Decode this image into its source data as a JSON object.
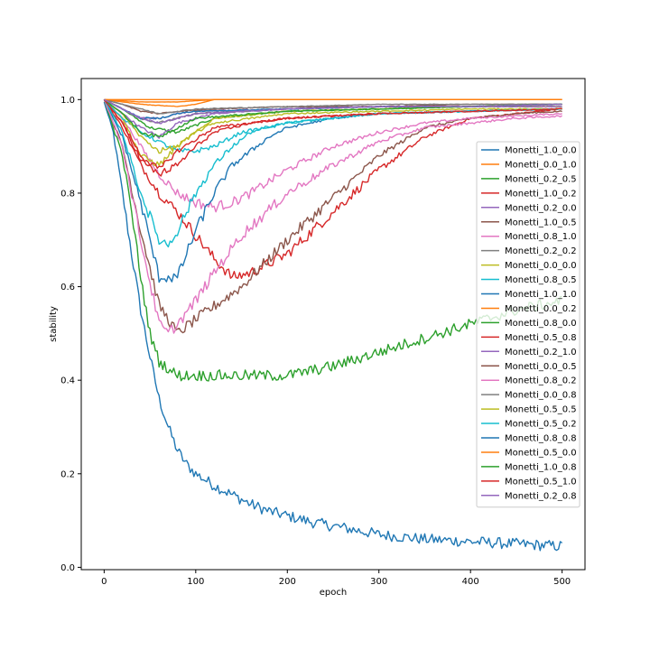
{
  "chart_data": {
    "type": "line",
    "title": "",
    "xlabel": "epoch",
    "ylabel": "stability",
    "xlim": [
      -25,
      525
    ],
    "ylim": [
      -0.005,
      1.045
    ],
    "xticks": [
      0,
      100,
      200,
      300,
      400,
      500
    ],
    "yticks": [
      0.0,
      0.2,
      0.4,
      0.6,
      0.8,
      1.0
    ],
    "xtick_labels": [
      "0",
      "100",
      "200",
      "300",
      "400",
      "500"
    ],
    "ytick_labels": [
      "0.0",
      "0.2",
      "0.4",
      "0.6",
      "0.8",
      "1.0"
    ],
    "grid": false,
    "legend_position": "right",
    "series": [
      {
        "name": "Monetti_1.0_0.0",
        "color": "#1f77b4",
        "x": [
          0,
          10,
          20,
          30,
          40,
          50,
          60,
          70,
          80,
          90,
          100,
          120,
          140,
          160,
          180,
          200,
          230,
          260,
          300,
          350,
          400,
          450,
          500
        ],
        "y": [
          0.995,
          0.93,
          0.8,
          0.67,
          0.55,
          0.45,
          0.36,
          0.3,
          0.25,
          0.22,
          0.2,
          0.175,
          0.155,
          0.135,
          0.12,
          0.11,
          0.095,
          0.085,
          0.07,
          0.06,
          0.055,
          0.05,
          0.045
        ]
      },
      {
        "name": "Monetti_0.0_1.0",
        "color": "#ff7f0e",
        "x": [
          0,
          500
        ],
        "y": [
          1.0,
          1.0
        ]
      },
      {
        "name": "Monetti_0.2_0.5",
        "color": "#2ca02c",
        "x": [
          0,
          20,
          50,
          80,
          120,
          200,
          300,
          400,
          500
        ],
        "y": [
          1.0,
          0.98,
          0.94,
          0.93,
          0.96,
          0.975,
          0.98,
          0.985,
          0.99
        ]
      },
      {
        "name": "Monetti_1.0_0.2",
        "color": "#d62728",
        "x": [
          0,
          20,
          40,
          60,
          80,
          100,
          120,
          140,
          160,
          200,
          250,
          300,
          350,
          400,
          450,
          500
        ],
        "y": [
          1.0,
          0.94,
          0.86,
          0.8,
          0.76,
          0.71,
          0.66,
          0.62,
          0.63,
          0.67,
          0.76,
          0.85,
          0.92,
          0.96,
          0.97,
          0.98
        ]
      },
      {
        "name": "Monetti_0.2_0.0",
        "color": "#9467bd",
        "x": [
          0,
          20,
          40,
          60,
          80,
          120,
          200,
          300,
          400,
          500
        ],
        "y": [
          1.0,
          0.97,
          0.94,
          0.92,
          0.95,
          0.97,
          0.98,
          0.985,
          0.985,
          0.985
        ]
      },
      {
        "name": "Monetti_1.0_0.5",
        "color": "#8c564b",
        "x": [
          0,
          20,
          40,
          60,
          80,
          100,
          150,
          200,
          250,
          300,
          350,
          400,
          450,
          500
        ],
        "y": [
          1.0,
          0.9,
          0.72,
          0.56,
          0.5,
          0.53,
          0.6,
          0.7,
          0.79,
          0.88,
          0.94,
          0.96,
          0.97,
          0.975
        ]
      },
      {
        "name": "Monetti_0.8_1.0",
        "color": "#e377c2",
        "x": [
          0,
          20,
          40,
          60,
          80,
          100,
          120,
          140,
          160,
          200,
          250,
          300,
          350,
          400,
          450,
          500
        ],
        "y": [
          1.0,
          0.96,
          0.9,
          0.84,
          0.8,
          0.78,
          0.77,
          0.78,
          0.8,
          0.85,
          0.9,
          0.93,
          0.95,
          0.96,
          0.965,
          0.97
        ]
      },
      {
        "name": "Monetti_0.2_0.2",
        "color": "#7f7f7f",
        "x": [
          0,
          20,
          40,
          60,
          80,
          100,
          200,
          300,
          400,
          500
        ],
        "y": [
          1.0,
          0.98,
          0.96,
          0.95,
          0.96,
          0.97,
          0.98,
          0.985,
          0.985,
          0.99
        ]
      },
      {
        "name": "Monetti_0.0_0.0",
        "color": "#bcbd22",
        "x": [
          0,
          20,
          40,
          60,
          80,
          100,
          120,
          200,
          300,
          400,
          500
        ],
        "y": [
          1.0,
          0.96,
          0.88,
          0.86,
          0.9,
          0.93,
          0.96,
          0.975,
          0.98,
          0.985,
          0.985
        ]
      },
      {
        "name": "Monetti_0.8_0.5",
        "color": "#17becf",
        "x": [
          0,
          20,
          40,
          60,
          80,
          100,
          120,
          150,
          200,
          300,
          400,
          500
        ],
        "y": [
          1.0,
          0.96,
          0.93,
          0.91,
          0.89,
          0.89,
          0.9,
          0.93,
          0.95,
          0.97,
          0.975,
          0.98
        ]
      },
      {
        "name": "Monetti_1.0_1.0",
        "color": "#1f77b4",
        "x": [
          0,
          20,
          40,
          60,
          80,
          100,
          120,
          140,
          160,
          180,
          200,
          250,
          300,
          400,
          500
        ],
        "y": [
          1.0,
          0.92,
          0.78,
          0.62,
          0.62,
          0.72,
          0.8,
          0.86,
          0.89,
          0.92,
          0.94,
          0.96,
          0.97,
          0.975,
          0.98
        ]
      },
      {
        "name": "Monetti_0.0_0.2",
        "color": "#ff7f0e",
        "x": [
          0,
          40,
          80,
          100,
          120,
          500
        ],
        "y": [
          1.0,
          0.99,
          0.985,
          0.99,
          1.0,
          1.0
        ]
      },
      {
        "name": "Monetti_0.8_0.0",
        "color": "#2ca02c",
        "x": [
          0,
          20,
          30,
          40,
          50,
          60,
          80,
          100,
          150,
          200,
          250,
          300,
          350,
          400,
          450,
          500
        ],
        "y": [
          1.0,
          0.88,
          0.76,
          0.62,
          0.5,
          0.44,
          0.41,
          0.41,
          0.41,
          0.41,
          0.43,
          0.46,
          0.49,
          0.52,
          0.55,
          0.57
        ]
      },
      {
        "name": "Monetti_0.5_0.8",
        "color": "#d62728",
        "x": [
          0,
          20,
          40,
          60,
          80,
          120,
          200,
          300,
          400,
          500
        ],
        "y": [
          1.0,
          0.95,
          0.88,
          0.85,
          0.89,
          0.94,
          0.96,
          0.97,
          0.975,
          0.98
        ]
      },
      {
        "name": "Monetti_0.2_1.0",
        "color": "#9467bd",
        "x": [
          0,
          20,
          40,
          60,
          80,
          100,
          200,
          300,
          400,
          500
        ],
        "y": [
          1.0,
          0.98,
          0.96,
          0.96,
          0.97,
          0.975,
          0.98,
          0.985,
          0.985,
          0.985
        ]
      },
      {
        "name": "Monetti_0.0_0.5",
        "color": "#8c564b",
        "x": [
          0,
          20,
          40,
          60,
          80,
          120,
          200,
          300,
          400,
          500
        ],
        "y": [
          1.0,
          0.99,
          0.975,
          0.97,
          0.975,
          0.98,
          0.985,
          0.985,
          0.99,
          0.99
        ]
      },
      {
        "name": "Monetti_0.8_0.2",
        "color": "#e377c2",
        "x": [
          0,
          20,
          40,
          60,
          70,
          80,
          100,
          120,
          150,
          200,
          250,
          300,
          350,
          400,
          450,
          500
        ],
        "y": [
          1.0,
          0.9,
          0.7,
          0.52,
          0.5,
          0.52,
          0.57,
          0.63,
          0.71,
          0.8,
          0.86,
          0.91,
          0.94,
          0.95,
          0.96,
          0.965
        ]
      },
      {
        "name": "Monetti_0.0_0.8",
        "color": "#7f7f7f",
        "x": [
          0,
          20,
          40,
          60,
          80,
          100,
          200,
          300,
          400,
          500
        ],
        "y": [
          1.0,
          0.99,
          0.98,
          0.97,
          0.975,
          0.98,
          0.985,
          0.99,
          0.99,
          0.99
        ]
      },
      {
        "name": "Monetti_0.5_0.5",
        "color": "#bcbd22",
        "x": [
          0,
          20,
          40,
          60,
          80,
          100,
          120,
          200,
          300,
          400,
          500
        ],
        "y": [
          1.0,
          0.97,
          0.92,
          0.89,
          0.9,
          0.93,
          0.95,
          0.97,
          0.975,
          0.98,
          0.98
        ]
      },
      {
        "name": "Monetti_0.5_0.2",
        "color": "#17becf",
        "x": [
          0,
          20,
          40,
          60,
          70,
          80,
          100,
          120,
          140,
          160,
          200,
          300,
          400,
          500
        ],
        "y": [
          1.0,
          0.93,
          0.8,
          0.7,
          0.69,
          0.72,
          0.8,
          0.86,
          0.9,
          0.93,
          0.95,
          0.97,
          0.975,
          0.98
        ]
      },
      {
        "name": "Monetti_0.8_0.8",
        "color": "#1f77b4",
        "x": [
          0,
          20,
          40,
          60,
          80,
          100,
          200,
          300,
          400,
          500
        ],
        "y": [
          1.0,
          0.98,
          0.96,
          0.96,
          0.97,
          0.975,
          0.98,
          0.985,
          0.985,
          0.99
        ]
      },
      {
        "name": "Monetti_0.5_0.0",
        "color": "#ff7f0e",
        "x": [
          0,
          40,
          80,
          120,
          500
        ],
        "y": [
          1.0,
          0.995,
          0.995,
          1.0,
          1.0
        ]
      },
      {
        "name": "Monetti_1.0_0.8",
        "color": "#2ca02c",
        "x": [
          0,
          20,
          40,
          60,
          80,
          100,
          200,
          300,
          400,
          500
        ],
        "y": [
          1.0,
          0.97,
          0.93,
          0.92,
          0.94,
          0.96,
          0.975,
          0.98,
          0.985,
          0.99
        ]
      },
      {
        "name": "Monetti_0.5_1.0",
        "color": "#d62728",
        "x": [
          0,
          20,
          40,
          60,
          80,
          100,
          120,
          160,
          200,
          300,
          400,
          500
        ],
        "y": [
          1.0,
          0.95,
          0.87,
          0.84,
          0.86,
          0.9,
          0.93,
          0.95,
          0.96,
          0.97,
          0.975,
          0.98
        ]
      },
      {
        "name": "Monetti_0.2_0.8",
        "color": "#9467bd",
        "x": [
          0,
          20,
          40,
          60,
          80,
          100,
          200,
          300,
          400,
          500
        ],
        "y": [
          1.0,
          0.98,
          0.96,
          0.95,
          0.96,
          0.97,
          0.98,
          0.985,
          0.985,
          0.99
        ]
      }
    ]
  }
}
